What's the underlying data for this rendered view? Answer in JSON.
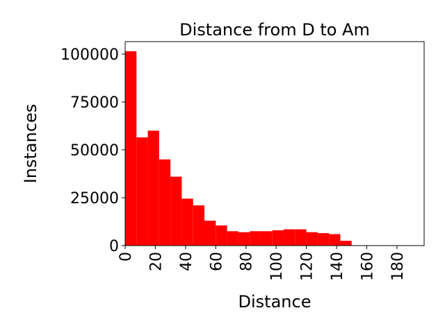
{
  "chart_data": {
    "type": "bar",
    "title": "Distance from D to Am",
    "xlabel": "Distance",
    "ylabel": "Instances",
    "bar_color": "#ff0000",
    "bin_width": 7.5,
    "bins": [
      0,
      7.5,
      15,
      22.5,
      30,
      37.5,
      45,
      52.5,
      60,
      67.5,
      75,
      82.5,
      90,
      97.5,
      105,
      112.5,
      120,
      127.5,
      135,
      142.5,
      150,
      157.5,
      165,
      172.5,
      180,
      187.5
    ],
    "values": [
      101500,
      56500,
      60000,
      45000,
      36000,
      24500,
      21000,
      13000,
      10500,
      7500,
      7000,
      7500,
      7500,
      8000,
      8500,
      8500,
      7000,
      6500,
      6000,
      2500,
      0,
      0,
      0,
      0,
      0,
      0
    ],
    "xlim": [
      0,
      198
    ],
    "ylim": [
      0,
      106500
    ],
    "xticks": [
      0,
      20,
      40,
      60,
      80,
      100,
      120,
      140,
      160,
      180
    ],
    "xtick_labels": [
      "0",
      "20",
      "40",
      "60",
      "80",
      "100",
      "120",
      "140",
      "160",
      "180"
    ],
    "yticks": [
      0,
      25000,
      50000,
      75000,
      100000
    ],
    "ytick_labels": [
      "0",
      "25000",
      "50000",
      "75000",
      "100000"
    ],
    "grid": false,
    "legend": "none"
  }
}
